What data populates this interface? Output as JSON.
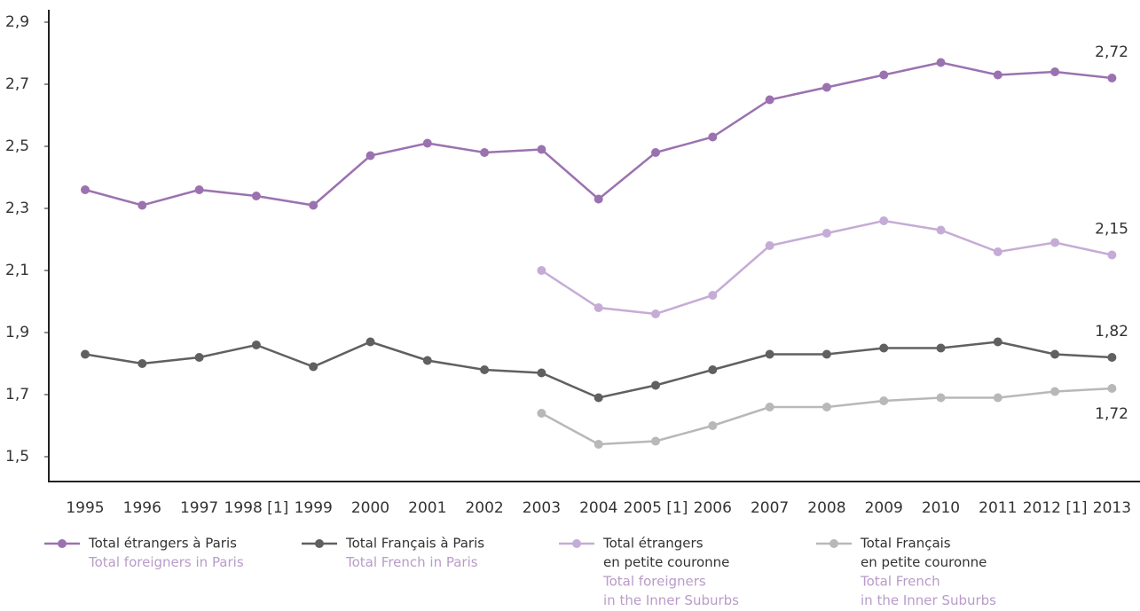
{
  "chart_data": {
    "type": "line",
    "categories": [
      "1995",
      "1996",
      "1997",
      "1998 [1]",
      "1999",
      "2000",
      "2001",
      "2002",
      "2003",
      "2004",
      "2005 [1]",
      "2006",
      "2007",
      "2008",
      "2009",
      "2010",
      "2011",
      "2012 [1]",
      "2013"
    ],
    "ylim": [
      1.42,
      2.94
    ],
    "yticks": [
      {
        "value": 1.5,
        "label": "1,5"
      },
      {
        "value": 1.7,
        "label": "1,7"
      },
      {
        "value": 1.9,
        "label": "1,9"
      },
      {
        "value": 2.1,
        "label": "2,1"
      },
      {
        "value": 2.3,
        "label": "2,3"
      },
      {
        "value": 2.5,
        "label": "2,5"
      },
      {
        "value": 2.7,
        "label": "2,7"
      },
      {
        "value": 2.9,
        "label": "2,9"
      }
    ],
    "grid": false,
    "legend": "bottom",
    "series": [
      {
        "name": [
          "Total étrangers à Paris"
        ],
        "name_en": [
          "Total foreigners in Paris"
        ],
        "color": "#9b72b0",
        "values": [
          2.36,
          2.31,
          2.36,
          2.34,
          2.31,
          2.47,
          2.51,
          2.48,
          2.49,
          2.33,
          2.48,
          2.53,
          2.65,
          2.69,
          2.73,
          2.77,
          2.73,
          2.74,
          2.72
        ],
        "value_labels": [
          null,
          null,
          null,
          null,
          null,
          null,
          null,
          null,
          null,
          null,
          null,
          null,
          null,
          null,
          null,
          null,
          null,
          null,
          "2,72"
        ]
      },
      {
        "name": [
          "Total Français à Paris"
        ],
        "name_en": [
          "Total French in Paris"
        ],
        "color": "#606060",
        "values": [
          1.83,
          1.8,
          1.82,
          1.86,
          1.79,
          1.87,
          1.81,
          1.78,
          1.77,
          1.69,
          1.73,
          1.78,
          1.83,
          1.83,
          1.85,
          1.85,
          1.87,
          1.83,
          1.82
        ],
        "value_labels": [
          null,
          null,
          null,
          null,
          null,
          null,
          null,
          null,
          null,
          null,
          null,
          null,
          null,
          null,
          null,
          null,
          null,
          null,
          "1,82"
        ]
      },
      {
        "name": [
          "Total étrangers",
          "en petite couronne"
        ],
        "name_en": [
          "Total foreigners",
          "in the Inner Suburbs"
        ],
        "color": "#c5acd6",
        "values": [
          null,
          null,
          null,
          null,
          null,
          null,
          null,
          null,
          2.1,
          1.98,
          1.96,
          2.02,
          2.18,
          2.22,
          2.26,
          2.23,
          2.16,
          2.19,
          2.15
        ],
        "value_labels": [
          null,
          null,
          null,
          null,
          null,
          null,
          null,
          null,
          null,
          null,
          null,
          null,
          null,
          null,
          null,
          null,
          null,
          null,
          "2,15"
        ]
      },
      {
        "name": [
          "Total Français",
          "en petite couronne"
        ],
        "name_en": [
          "Total French",
          "in the Inner Suburbs"
        ],
        "color": "#b8b8b8",
        "values": [
          null,
          null,
          null,
          null,
          null,
          null,
          null,
          null,
          1.64,
          1.54,
          1.55,
          1.6,
          1.66,
          1.66,
          1.68,
          1.69,
          1.69,
          1.71,
          1.72
        ],
        "value_labels": [
          null,
          null,
          null,
          null,
          null,
          null,
          null,
          null,
          null,
          null,
          null,
          null,
          null,
          null,
          null,
          null,
          null,
          null,
          "1,72"
        ]
      }
    ]
  }
}
